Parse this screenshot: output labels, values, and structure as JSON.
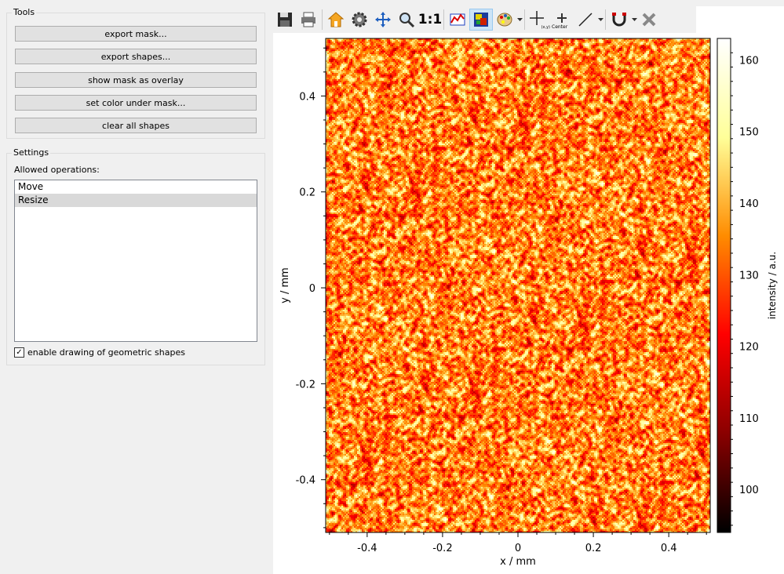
{
  "tools": {
    "title": "Tools",
    "buttons": [
      {
        "label": "export mask..."
      },
      {
        "label": "export shapes..."
      },
      {
        "label": "show mask as overlay"
      },
      {
        "label": "set color under mask..."
      },
      {
        "label": "clear all shapes"
      }
    ]
  },
  "settings": {
    "title": "Settings",
    "allowed_label": "Allowed operations:",
    "operations": [
      {
        "label": "Move",
        "selected": false
      },
      {
        "label": "Resize",
        "selected": true
      }
    ],
    "checkbox_label": "enable drawing of geometric shapes",
    "checkbox_checked": true
  },
  "toolbar": {
    "one_to_one_label": "1:1",
    "xy_label": "(x,y)",
    "center_label": "Center",
    "icons": [
      "save-icon",
      "print-icon",
      "home-icon",
      "settings-gear-icon",
      "pan-icon",
      "zoom-icon",
      "zoom-1to1-icon",
      "data-table-icon",
      "color-image-icon",
      "palette-icon",
      "crosshair-xy-icon",
      "center-icon",
      "line-tool-icon",
      "magnet-icon",
      "delete-icon"
    ]
  },
  "plot": {
    "xlabel": "x / mm",
    "ylabel": "y / mm",
    "colorbar_label": "intensity / a.u.",
    "x_ticks": [
      "-0.4",
      "-0.2",
      "0",
      "0.2",
      "0.4"
    ],
    "y_ticks": [
      "0.4",
      "0.2",
      "0",
      "-0.2",
      "-0.4"
    ],
    "colorbar_ticks": [
      "160",
      "150",
      "140",
      "130",
      "120",
      "110",
      "100"
    ]
  },
  "chart_data": {
    "type": "heatmap",
    "xlabel": "x / mm",
    "ylabel": "y / mm",
    "xlim": [
      -0.51,
      0.51
    ],
    "ylim": [
      -0.51,
      0.52
    ],
    "colorbar": {
      "label": "intensity / a.u.",
      "range": [
        94,
        163
      ],
      "ticks": [
        100,
        110,
        120,
        130,
        140,
        150,
        160
      ]
    },
    "value_distribution": {
      "mean": 135,
      "min": 94,
      "max": 163
    },
    "colormap": [
      "#000000",
      "#8b0000",
      "#ff0000",
      "#ff8c00",
      "#ffff99",
      "#ffffff"
    ]
  }
}
